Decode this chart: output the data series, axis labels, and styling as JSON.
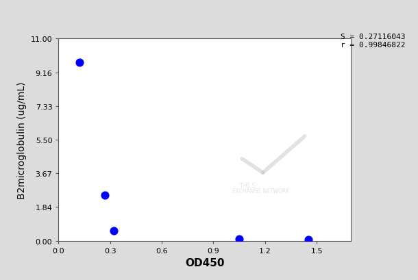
{
  "xlabel": "OD450",
  "ylabel": "B2microglobulin (ug/mL)",
  "xlim": [
    0.0,
    1.7
  ],
  "ylim": [
    0.0,
    11.0
  ],
  "xticks": [
    0.0,
    0.3,
    0.6,
    0.9,
    1.2,
    1.5
  ],
  "yticks": [
    0.0,
    1.84,
    3.67,
    5.5,
    7.33,
    9.16,
    11.0
  ],
  "data_points_x": [
    0.12,
    0.27,
    0.32,
    1.05,
    1.45
  ],
  "data_points_y": [
    9.7,
    2.5,
    0.55,
    0.08,
    0.06
  ],
  "point_color": "#0000FF",
  "point_size": 60,
  "curve_color": "#FF0000",
  "curve_linewidth": 1.8,
  "annotation_text": "S = 0.27116043\nr = 0.99846822",
  "bg_color": "#DCDCDC",
  "plot_bg_color": "#FFFFFF",
  "xlabel_fontsize": 11,
  "ylabel_fontsize": 10,
  "tick_fontsize": 8,
  "annotation_fontsize": 8
}
